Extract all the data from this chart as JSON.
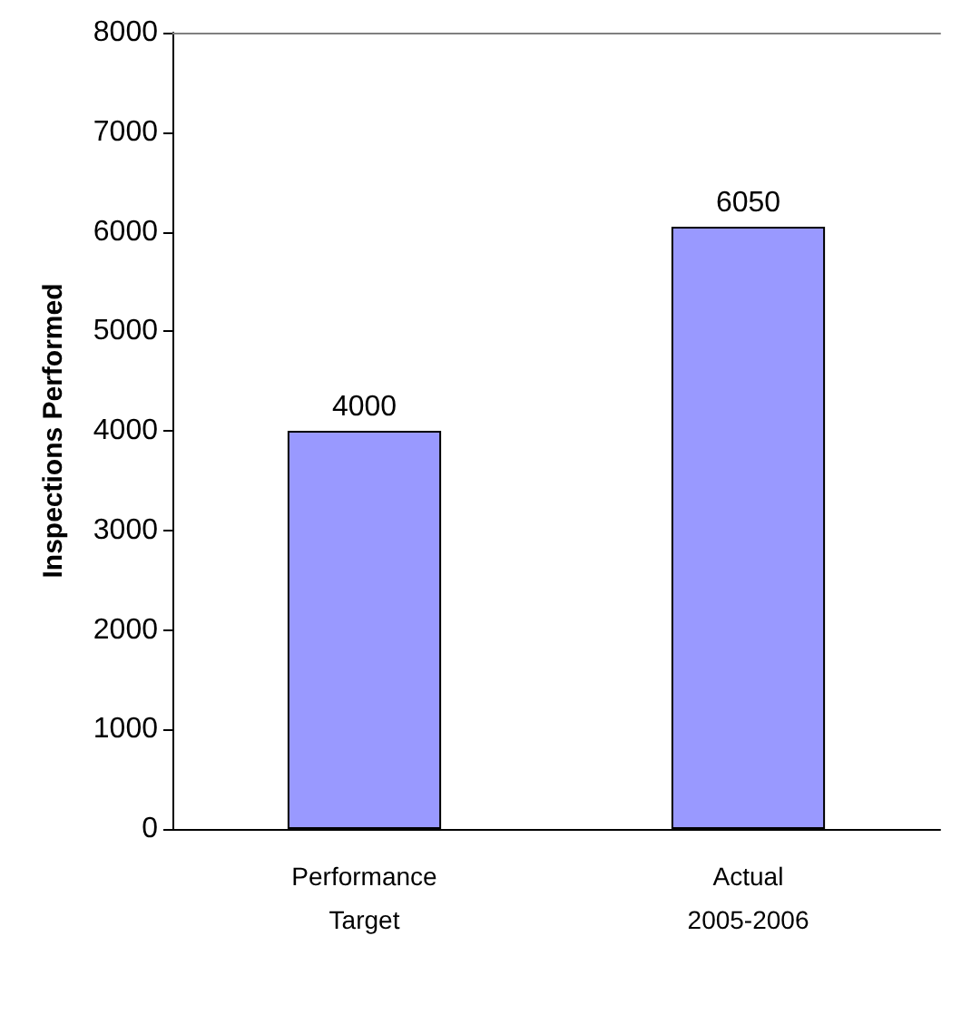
{
  "chart_data": {
    "type": "bar",
    "ylabel": "Inspections Performed",
    "categories": [
      "Performance\nTarget",
      "Actual\n2005-2006"
    ],
    "values": [
      4000,
      6050
    ],
    "color": "#9999ff",
    "ylim": [
      0,
      8000
    ],
    "yticks": [
      0,
      1000,
      2000,
      3000,
      4000,
      5000,
      6000,
      7000,
      8000
    ],
    "grid": false,
    "data_labels": true
  }
}
